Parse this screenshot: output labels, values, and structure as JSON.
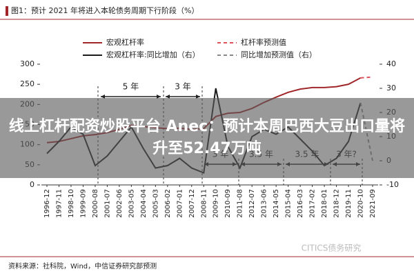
{
  "chart_data": {
    "type": "line",
    "title": "图1：预计 2021 年将进入本轮债务周期下行阶段（%）",
    "categories": [
      "1996-12",
      "1997-11",
      "1998-10",
      "1999-09",
      "2000-08",
      "2001-07",
      "2002-06",
      "2003-05",
      "2004-04",
      "2005-03",
      "2006-02",
      "2007-01",
      "2007-12",
      "2008-11",
      "2009-10",
      "2010-09",
      "2011-08",
      "2012-07",
      "2013-06",
      "2014-05",
      "2015-04",
      "2016-03",
      "2017-02",
      "2018-01",
      "2018-12",
      "2019-11",
      "2020-10",
      "2021-09"
    ],
    "series": [
      {
        "name": "宏观杠杆率",
        "color": "#a0262a",
        "dashed": false,
        "axis": "y",
        "values": [
          105,
          108,
          115,
          122,
          125,
          130,
          138,
          148,
          145,
          142,
          140,
          141,
          138,
          140,
          170,
          178,
          180,
          190,
          205,
          218,
          230,
          238,
          242,
          242,
          244,
          250,
          266,
          null
        ]
      },
      {
        "name": "杠杆率预测值",
        "color": "#e0525a",
        "dashed": true,
        "axis": "y",
        "values": [
          null,
          null,
          null,
          null,
          null,
          null,
          null,
          null,
          null,
          null,
          null,
          null,
          null,
          null,
          null,
          null,
          null,
          null,
          null,
          null,
          null,
          null,
          null,
          null,
          null,
          null,
          266,
          268
        ]
      },
      {
        "name": "宏观杠杆率:同比增加（右）",
        "color": "#1a1a1a",
        "dashed": false,
        "axis": "y2",
        "values": [
          3,
          8,
          14,
          11,
          -2,
          2,
          8,
          14,
          5,
          -3,
          -2,
          1,
          -3,
          -5,
          30,
          6,
          -3,
          10,
          13,
          11,
          14,
          9,
          4,
          -2,
          1,
          8,
          24,
          null
        ]
      },
      {
        "name": "同比增加预测值（右）",
        "color": "#888888",
        "dashed": true,
        "axis": "y2",
        "values": [
          null,
          null,
          null,
          null,
          null,
          null,
          null,
          null,
          null,
          null,
          null,
          null,
          null,
          null,
          null,
          null,
          null,
          null,
          null,
          null,
          null,
          null,
          null,
          null,
          null,
          null,
          24,
          0
        ]
      }
    ],
    "ylim": [
      0,
      300
    ],
    "yticks": [
      0,
      50,
      100,
      150,
      200,
      250,
      300
    ],
    "y2lim": [
      -10,
      40
    ],
    "y2ticks": [
      -10,
      0,
      10,
      20,
      30,
      40
    ],
    "annotations": [
      "5 年",
      "3 年",
      "3 年",
      "3.5 年",
      "3.5 年",
      "3 年?"
    ],
    "source": "资料来源：社科院，Wind，中信证券研究部预测",
    "watermark": "CITICS债务研究"
  },
  "overlay": {
    "text": "线上杠杆配资炒股平台 Anec：预计本周巴西大豆出口量将升至52.47万吨"
  }
}
